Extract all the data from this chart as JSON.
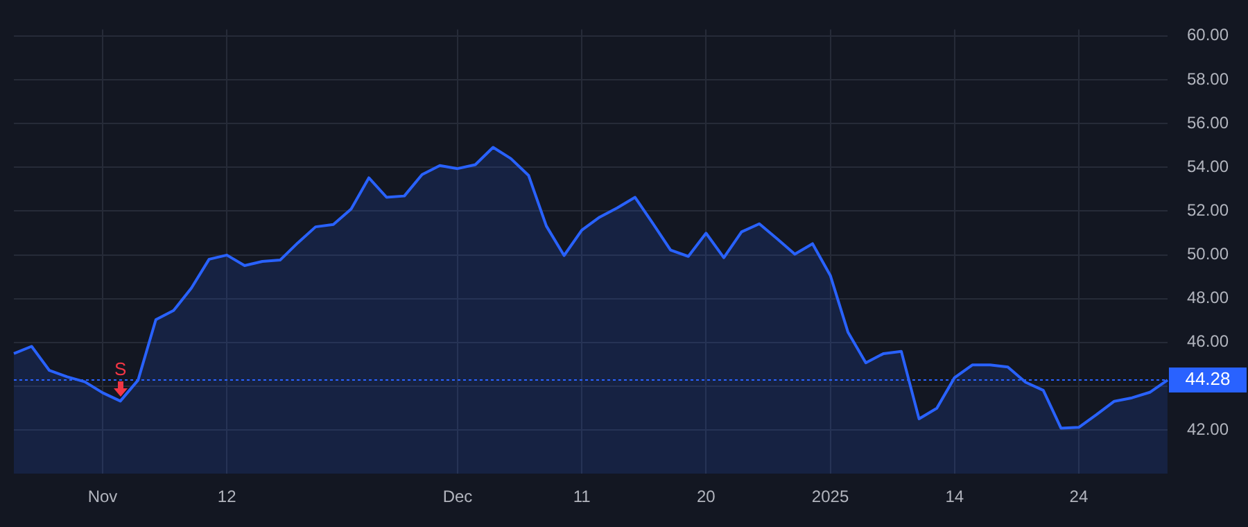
{
  "chart_data": {
    "type": "area",
    "categories": [
      null,
      null,
      null,
      null,
      null,
      "Nov",
      null,
      null,
      null,
      null,
      null,
      null,
      "12",
      null,
      null,
      null,
      null,
      null,
      null,
      null,
      null,
      null,
      null,
      null,
      null,
      "Dec",
      null,
      null,
      null,
      null,
      null,
      null,
      "11",
      null,
      null,
      null,
      null,
      null,
      null,
      "20",
      null,
      null,
      null,
      null,
      null,
      null,
      "2025",
      null,
      null,
      null,
      null,
      null,
      null,
      "14",
      null,
      null,
      null,
      null,
      null,
      null,
      "24",
      null,
      null,
      null,
      null,
      null
    ],
    "values": [
      45.49,
      45.82,
      44.72,
      44.43,
      44.2,
      43.7,
      43.32,
      44.28,
      47.04,
      47.46,
      48.48,
      49.8,
      49.99,
      49.51,
      49.7,
      49.76,
      50.55,
      51.28,
      51.39,
      52.09,
      53.52,
      52.63,
      52.69,
      53.67,
      54.08,
      53.94,
      54.12,
      54.91,
      54.4,
      53.63,
      51.32,
      49.97,
      51.13,
      51.72,
      52.15,
      52.63,
      51.44,
      50.22,
      49.93,
      50.99,
      49.87,
      51.05,
      51.42,
      50.74,
      50.03,
      50.51,
      49.06,
      46.46,
      45.07,
      45.49,
      45.59,
      42.51,
      42.99,
      44.39,
      44.97,
      44.97,
      44.88,
      44.18,
      43.81,
      42.08,
      42.12,
      42.7,
      43.31,
      43.47,
      43.72,
      44.28
    ],
    "color": "#2962ff",
    "ylim": [
      40,
      60.3
    ],
    "yticks": [
      {
        "value": 42,
        "label": "42.00"
      },
      {
        "value": 44,
        "label": null
      },
      {
        "value": 46,
        "label": "46.00"
      },
      {
        "value": 48,
        "label": "48.00"
      },
      {
        "value": 50,
        "label": "50.00"
      },
      {
        "value": 52,
        "label": "52.00"
      },
      {
        "value": 54,
        "label": "54.00"
      },
      {
        "value": 56,
        "label": "56.00"
      },
      {
        "value": 58,
        "label": "58.00"
      },
      {
        "value": 60,
        "label": "60.00"
      }
    ],
    "grid": true,
    "ref_lines": [
      {
        "axis": "y",
        "value": 44.28,
        "label": "44.28",
        "color": "#2962ff",
        "line_style": "dotted"
      }
    ],
    "annotations": [
      {
        "text": "S",
        "y": 43.32
      }
    ]
  }
}
